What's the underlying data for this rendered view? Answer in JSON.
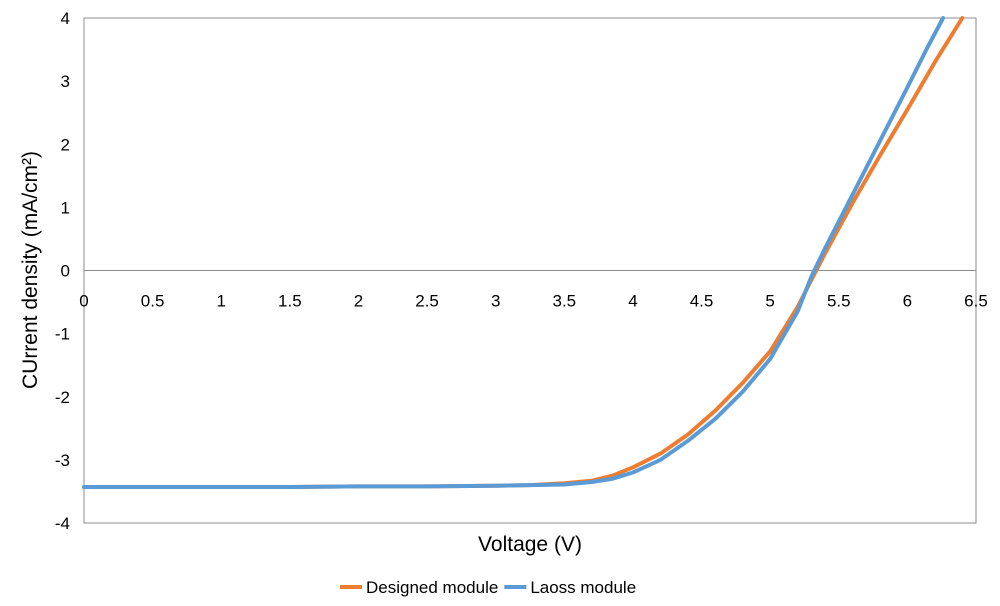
{
  "chart_data": {
    "type": "line",
    "title": "",
    "xlabel": "Voltage (V)",
    "ylabel": "CUrrent density (mA/cm²)",
    "xlim": [
      0,
      6.5
    ],
    "ylim": [
      -4,
      4
    ],
    "xticks": [
      "0",
      "0.5",
      "1",
      "1.5",
      "2",
      "2.5",
      "3",
      "3.5",
      "4",
      "4.5",
      "5",
      "5.5",
      "6",
      "6.5"
    ],
    "yticks": [
      "4",
      "3",
      "2",
      "1",
      "0",
      "-1",
      "-2",
      "-3",
      "-4"
    ],
    "grid": false,
    "legend": "bottom",
    "series": [
      {
        "name": "Designed module",
        "color": "#ED7D31",
        "points": [
          [
            0,
            -3.43
          ],
          [
            0.5,
            -3.43
          ],
          [
            1,
            -3.43
          ],
          [
            1.5,
            -3.43
          ],
          [
            2,
            -3.42
          ],
          [
            2.5,
            -3.42
          ],
          [
            3,
            -3.41
          ],
          [
            3.25,
            -3.4
          ],
          [
            3.5,
            -3.37
          ],
          [
            3.7,
            -3.33
          ],
          [
            3.85,
            -3.25
          ],
          [
            4,
            -3.12
          ],
          [
            4.2,
            -2.9
          ],
          [
            4.4,
            -2.6
          ],
          [
            4.6,
            -2.22
          ],
          [
            4.8,
            -1.78
          ],
          [
            5,
            -1.28
          ],
          [
            5.2,
            -0.58
          ],
          [
            5.3,
            -0.15
          ],
          [
            5.4,
            0.27
          ],
          [
            5.6,
            1.07
          ],
          [
            5.8,
            1.82
          ],
          [
            6,
            2.55
          ],
          [
            6.2,
            3.3
          ],
          [
            6.4,
            4.0
          ]
        ]
      },
      {
        "name": "Laoss module",
        "color": "#5B9BD5",
        "points": [
          [
            0,
            -3.43
          ],
          [
            0.5,
            -3.43
          ],
          [
            1,
            -3.43
          ],
          [
            1.5,
            -3.43
          ],
          [
            2,
            -3.42
          ],
          [
            2.5,
            -3.42
          ],
          [
            3,
            -3.41
          ],
          [
            3.25,
            -3.4
          ],
          [
            3.5,
            -3.39
          ],
          [
            3.7,
            -3.35
          ],
          [
            3.85,
            -3.3
          ],
          [
            4,
            -3.2
          ],
          [
            4.2,
            -3.0
          ],
          [
            4.4,
            -2.7
          ],
          [
            4.6,
            -2.35
          ],
          [
            4.8,
            -1.92
          ],
          [
            5,
            -1.4
          ],
          [
            5.2,
            -0.65
          ],
          [
            5.3,
            -0.1
          ],
          [
            5.4,
            0.35
          ],
          [
            5.6,
            1.2
          ],
          [
            5.8,
            2.05
          ],
          [
            6,
            2.9
          ],
          [
            6.15,
            3.55
          ],
          [
            6.26,
            4.0
          ]
        ]
      }
    ]
  }
}
